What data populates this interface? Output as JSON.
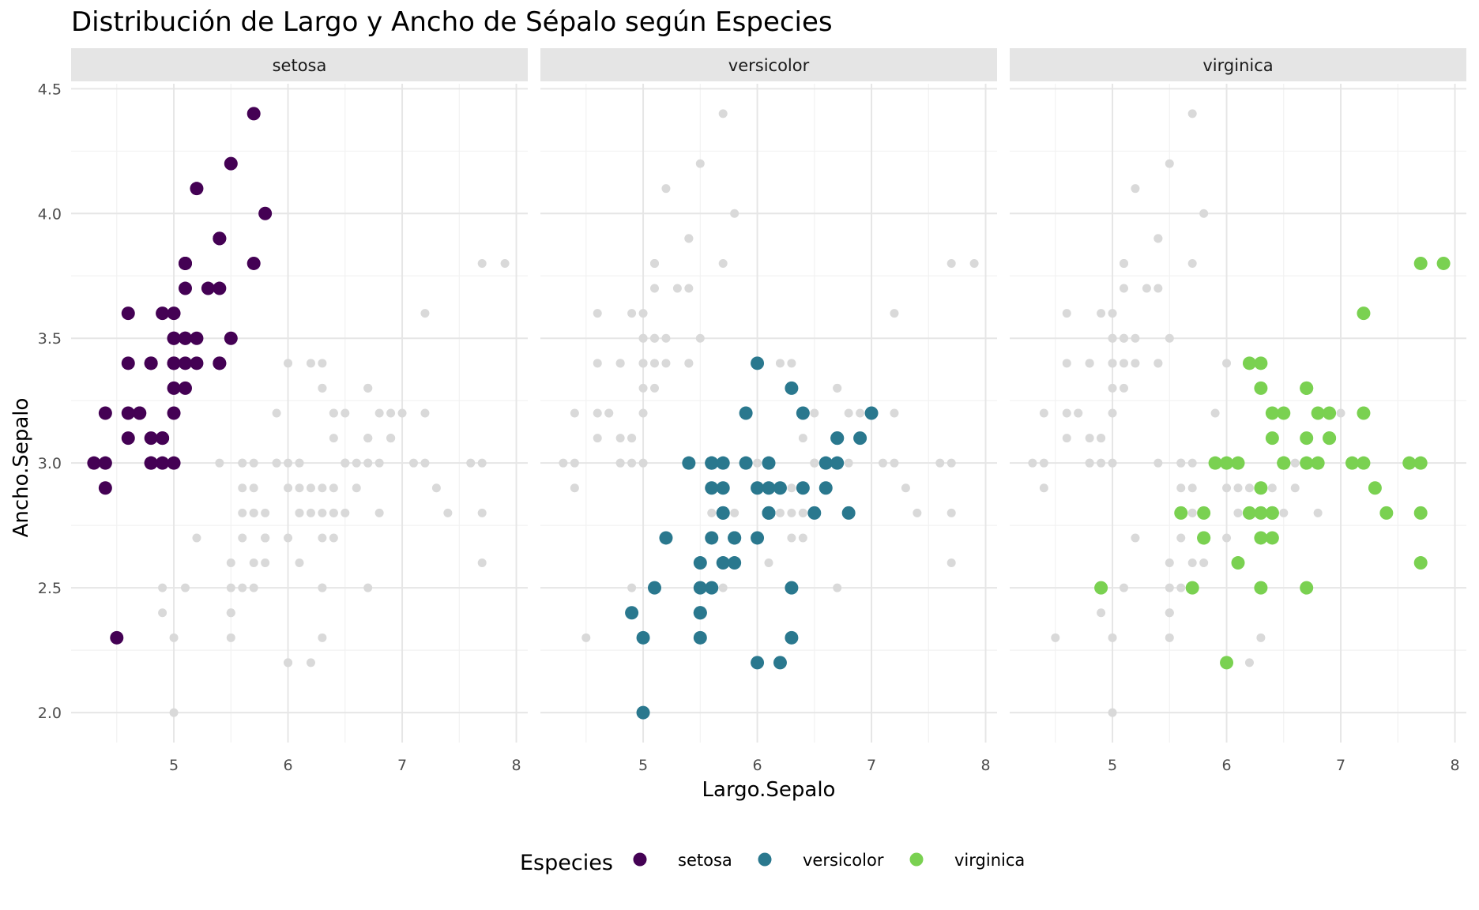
{
  "chart_data": {
    "type": "scatter",
    "title": "Distribución de Largo y Ancho de Sépalo según Especies",
    "xlabel": "Largo.Sepalo",
    "ylabel": "Ancho.Sepalo",
    "xlim": [
      4.3,
      7.9
    ],
    "ylim": [
      2.0,
      4.4
    ],
    "x_ticks": [
      "5",
      "6",
      "7",
      "8"
    ],
    "y_ticks": [
      "2.0",
      "2.5",
      "3.0",
      "3.5",
      "4.0",
      "4.5"
    ],
    "facets": [
      "setosa",
      "versicolor",
      "virginica"
    ],
    "grid": true,
    "background_points_color": "#d9d9d9",
    "legend": {
      "title": "Especies",
      "position": "bottom"
    },
    "series": [
      {
        "name": "setosa",
        "color": "#440154",
        "x": [
          5.1,
          4.9,
          4.7,
          4.6,
          5.0,
          5.4,
          4.6,
          5.0,
          4.4,
          4.9,
          5.4,
          4.8,
          4.8,
          4.3,
          5.8,
          5.7,
          5.4,
          5.1,
          5.7,
          5.1,
          5.4,
          5.1,
          4.6,
          5.1,
          4.8,
          5.0,
          5.0,
          5.2,
          5.2,
          4.7,
          4.8,
          5.4,
          5.2,
          5.5,
          4.9,
          5.0,
          5.5,
          4.9,
          4.4,
          5.1,
          5.0,
          4.5,
          4.4,
          5.0,
          5.1,
          4.8,
          5.1,
          4.6,
          5.3,
          5.0
        ],
        "y": [
          3.5,
          3.0,
          3.2,
          3.1,
          3.6,
          3.9,
          3.4,
          3.4,
          2.9,
          3.1,
          3.7,
          3.4,
          3.0,
          3.0,
          4.0,
          4.4,
          3.9,
          3.5,
          3.8,
          3.8,
          3.4,
          3.7,
          3.6,
          3.3,
          3.4,
          3.0,
          3.4,
          3.5,
          3.4,
          3.2,
          3.1,
          3.4,
          4.1,
          4.2,
          3.1,
          3.2,
          3.5,
          3.6,
          3.0,
          3.4,
          3.5,
          2.3,
          3.2,
          3.5,
          3.8,
          3.0,
          3.8,
          3.2,
          3.7,
          3.3
        ]
      },
      {
        "name": "versicolor",
        "color": "#2a788e",
        "x": [
          7.0,
          6.4,
          6.9,
          5.5,
          6.5,
          5.7,
          6.3,
          4.9,
          6.6,
          5.2,
          5.0,
          5.9,
          6.0,
          6.1,
          5.6,
          6.7,
          5.6,
          5.8,
          6.2,
          5.6,
          5.9,
          6.1,
          6.3,
          6.1,
          6.4,
          6.6,
          6.8,
          6.7,
          6.0,
          5.7,
          5.5,
          5.5,
          5.8,
          6.0,
          5.4,
          6.0,
          6.7,
          6.3,
          5.6,
          5.5,
          5.5,
          6.1,
          5.8,
          5.0,
          5.6,
          5.7,
          5.7,
          6.2,
          5.1,
          5.7
        ],
        "y": [
          3.2,
          3.2,
          3.1,
          2.3,
          2.8,
          2.8,
          3.3,
          2.4,
          2.9,
          2.7,
          2.0,
          3.0,
          2.2,
          2.9,
          2.9,
          3.1,
          3.0,
          2.7,
          2.2,
          2.5,
          3.2,
          2.8,
          2.5,
          2.8,
          2.9,
          3.0,
          2.8,
          3.0,
          2.9,
          2.6,
          2.4,
          2.4,
          2.7,
          2.7,
          3.0,
          3.4,
          3.1,
          2.3,
          3.0,
          2.5,
          2.6,
          3.0,
          2.6,
          2.3,
          2.7,
          3.0,
          2.9,
          2.9,
          2.5,
          2.8
        ]
      },
      {
        "name": "virginica",
        "color": "#7ad151",
        "x": [
          6.3,
          5.8,
          7.1,
          6.3,
          6.5,
          7.6,
          4.9,
          7.3,
          6.7,
          7.2,
          6.5,
          6.4,
          6.8,
          5.7,
          5.8,
          6.4,
          6.5,
          7.7,
          7.7,
          6.0,
          6.9,
          5.6,
          7.7,
          6.3,
          6.7,
          7.2,
          6.2,
          6.1,
          6.4,
          7.2,
          7.4,
          7.9,
          6.4,
          6.3,
          6.1,
          7.7,
          6.3,
          6.4,
          6.0,
          6.9,
          6.7,
          6.9,
          5.8,
          6.8,
          6.7,
          6.7,
          6.3,
          6.5,
          6.2,
          5.9
        ],
        "y": [
          3.3,
          2.7,
          3.0,
          2.9,
          3.0,
          3.0,
          2.5,
          2.9,
          2.5,
          3.6,
          3.2,
          2.7,
          3.0,
          2.5,
          2.8,
          3.2,
          3.0,
          3.8,
          2.6,
          2.2,
          3.2,
          2.8,
          2.8,
          2.7,
          3.3,
          3.2,
          2.8,
          3.0,
          2.8,
          3.0,
          2.8,
          3.8,
          2.8,
          2.8,
          2.6,
          3.0,
          3.4,
          3.1,
          3.0,
          3.1,
          3.1,
          3.1,
          2.7,
          3.2,
          3.3,
          3.0,
          2.5,
          3.0,
          3.4,
          3.0
        ]
      }
    ]
  }
}
